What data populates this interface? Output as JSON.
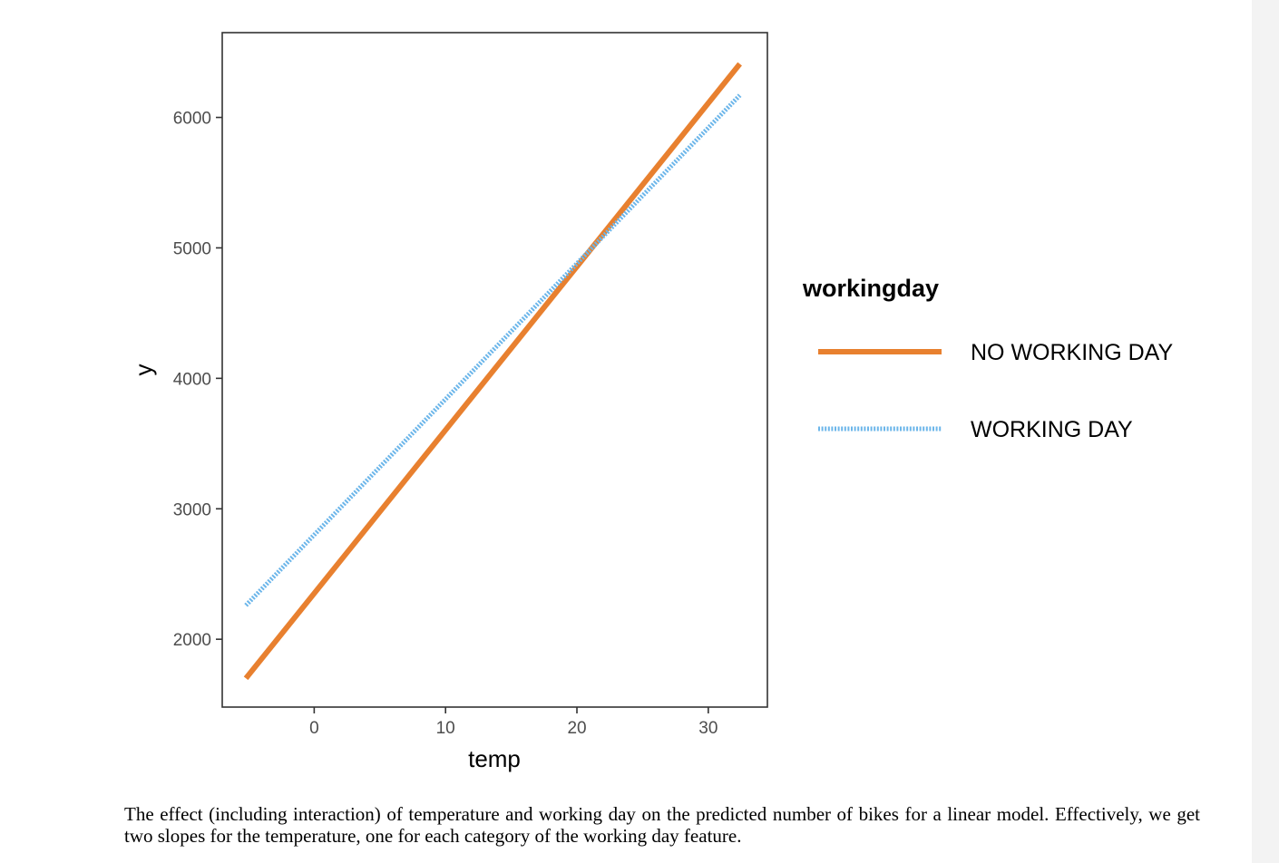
{
  "chart_data": {
    "type": "line",
    "title": "",
    "xlabel": "temp",
    "ylabel": "y",
    "xlim": [
      -7,
      34.5
    ],
    "ylim": [
      1480,
      6650
    ],
    "xticks": [
      0,
      10,
      20,
      30
    ],
    "yticks": [
      2000,
      3000,
      4000,
      5000,
      6000
    ],
    "grid": false,
    "legend": {
      "title": "workingday",
      "position": "right"
    },
    "series": [
      {
        "name": "NO WORKING DAY",
        "color": "#e8802f",
        "style": "solid",
        "x": [
          -5.2,
          32.4
        ],
        "y": [
          1700,
          6410
        ]
      },
      {
        "name": "WORKING DAY",
        "color": "#6cb6ea",
        "style": "dotted",
        "x": [
          -5.2,
          32.4
        ],
        "y": [
          2260,
          6170
        ]
      }
    ]
  },
  "caption": "The effect (including interaction) of temperature and working day on the predicted number of bikes for a linear model. Effectively, we get two slopes for the temperature, one for each category of the working day feature."
}
